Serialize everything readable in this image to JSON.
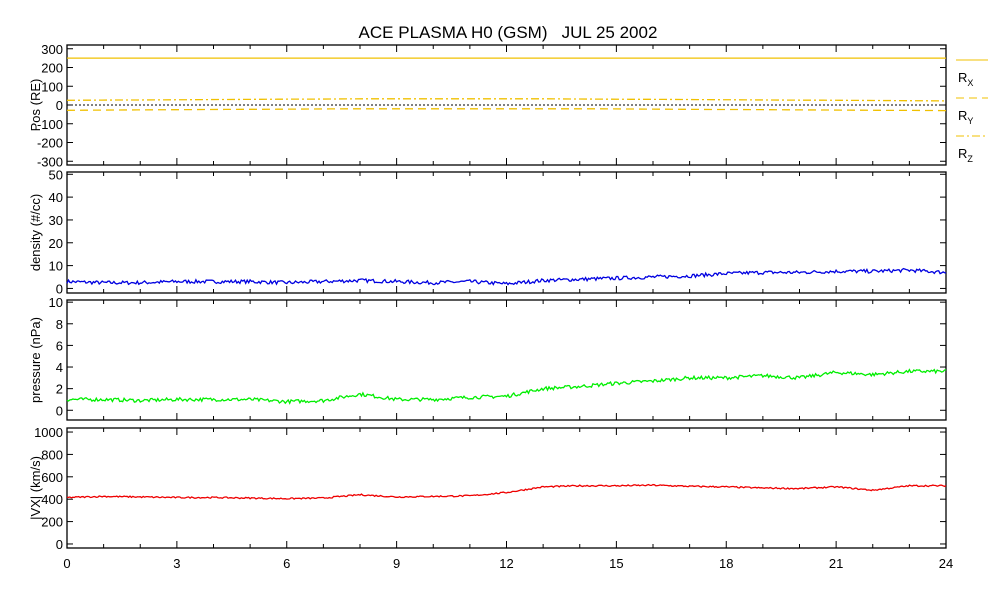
{
  "chart_data": {
    "type": "line",
    "title": "ACE PLASMA H0 (GSM)   JUL 25 2002",
    "x_ticks": [
      "0",
      "3",
      "6",
      "9",
      "12",
      "15",
      "18",
      "21",
      "24"
    ],
    "xlim": [
      0,
      24
    ],
    "colors": {
      "pos": "#f0c000",
      "density": "#0000e0",
      "pressure": "#00ee00",
      "vx": "#ee0000"
    },
    "panels": [
      {
        "id": "pos",
        "ylabel": "Pos (RE)",
        "ylim": [
          -320,
          320
        ],
        "ticks": [
          300,
          200,
          100,
          0,
          -100,
          -200,
          -300
        ],
        "series": [
          {
            "name": "RX",
            "style": "solid",
            "values": [
              250,
              250,
              250,
              250,
              250,
              250,
              250,
              250,
              250,
              250,
              250,
              250,
              250,
              250,
              250,
              250,
              250,
              250,
              250,
              250,
              250,
              250,
              250,
              250,
              250
            ]
          },
          {
            "name": "RY",
            "style": "dashed",
            "values": [
              -28,
              -27,
              -26,
              -25,
              -24,
              -23,
              -22,
              -21,
              -20,
              -20,
              -20,
              -20,
              -20,
              -20,
              -20,
              -21,
              -22,
              -23,
              -24,
              -25,
              -26,
              -27,
              -28,
              -29,
              -30
            ]
          },
          {
            "name": "RZ",
            "style": "dashdot",
            "values": [
              25,
              26,
              27,
              28,
              29,
              30,
              31,
              32,
              33,
              33,
              33,
              33,
              33,
              33,
              32,
              31,
              30,
              29,
              28,
              27,
              26,
              25,
              24,
              23,
              22
            ]
          }
        ]
      },
      {
        "id": "density",
        "ylabel": "density (#/cc)",
        "ylim": [
          -2,
          51
        ],
        "ticks": [
          50,
          40,
          30,
          20,
          10,
          0
        ],
        "series": [
          {
            "name": "density",
            "values": [
              3,
              2.5,
              2.5,
              3,
              3,
              3,
              2.5,
              3,
              3.5,
              3,
              2.5,
              3,
              2,
              3.5,
              4,
              4.5,
              5,
              5.5,
              6.5,
              7,
              7,
              7.5,
              7.5,
              8,
              7
            ]
          }
        ]
      },
      {
        "id": "pressure",
        "ylabel": "pressure (nPa)",
        "ylim": [
          -0.9,
          10.2
        ],
        "ticks": [
          10,
          8,
          6,
          4,
          2,
          0
        ],
        "series": [
          {
            "name": "pressure",
            "values": [
              1,
              1,
              0.9,
              1,
              1,
              1,
              0.8,
              0.9,
              1.5,
              1,
              1,
              1.2,
              1.3,
              2,
              2.2,
              2.5,
              2.7,
              3,
              3,
              3.2,
              3,
              3.5,
              3.3,
              3.6,
              3.6
            ]
          }
        ]
      },
      {
        "id": "vx",
        "ylabel": "|VX| (km/s)",
        "ylim": [
          -36,
          1036
        ],
        "ticks": [
          1000,
          800,
          600,
          400,
          200,
          0
        ],
        "series": [
          {
            "name": "vx",
            "values": [
              415,
              425,
              420,
              415,
              415,
              410,
              405,
              410,
              440,
              420,
              425,
              430,
              460,
              510,
              520,
              520,
              525,
              515,
              510,
              500,
              495,
              510,
              480,
              520,
              520
            ]
          }
        ]
      }
    ],
    "legend": [
      "RX",
      "RY",
      "RZ"
    ],
    "legend_placement": "right of top panel"
  }
}
